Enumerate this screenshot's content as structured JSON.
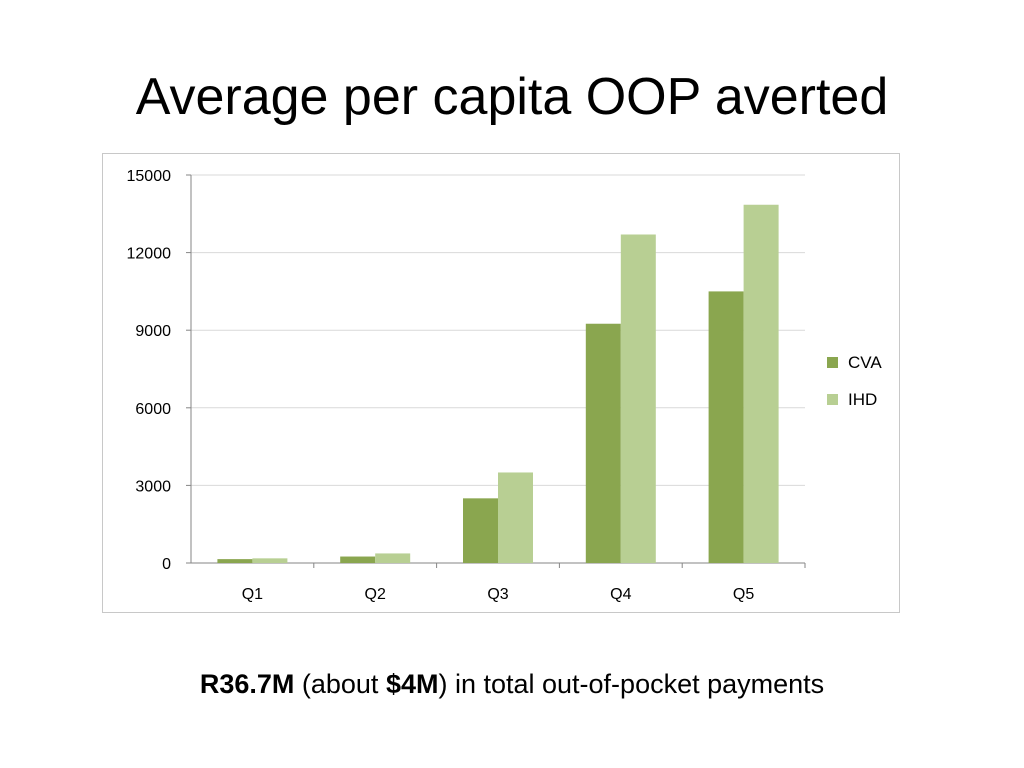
{
  "slide": {
    "title": "Average per capita OOP averted",
    "caption": {
      "part1_bold": "R36.7M",
      "part2": " (about ",
      "part3_bold": "$4M",
      "part4": ") in total out-of-pocket payments"
    }
  },
  "chart_data": {
    "type": "bar",
    "title": "",
    "xlabel": "",
    "ylabel": "",
    "categories": [
      "Q1",
      "Q2",
      "Q3",
      "Q4",
      "Q5"
    ],
    "series": [
      {
        "name": "CVA",
        "color": "#8aa64f",
        "values": [
          150,
          250,
          2500,
          9250,
          10500
        ]
      },
      {
        "name": "IHD",
        "color": "#b8cf93",
        "values": [
          180,
          370,
          3500,
          12700,
          13850
        ]
      }
    ],
    "ylim": [
      0,
      15000
    ],
    "yticks": [
      0,
      3000,
      6000,
      9000,
      12000,
      15000
    ],
    "grid": true,
    "legend_position": "right"
  }
}
